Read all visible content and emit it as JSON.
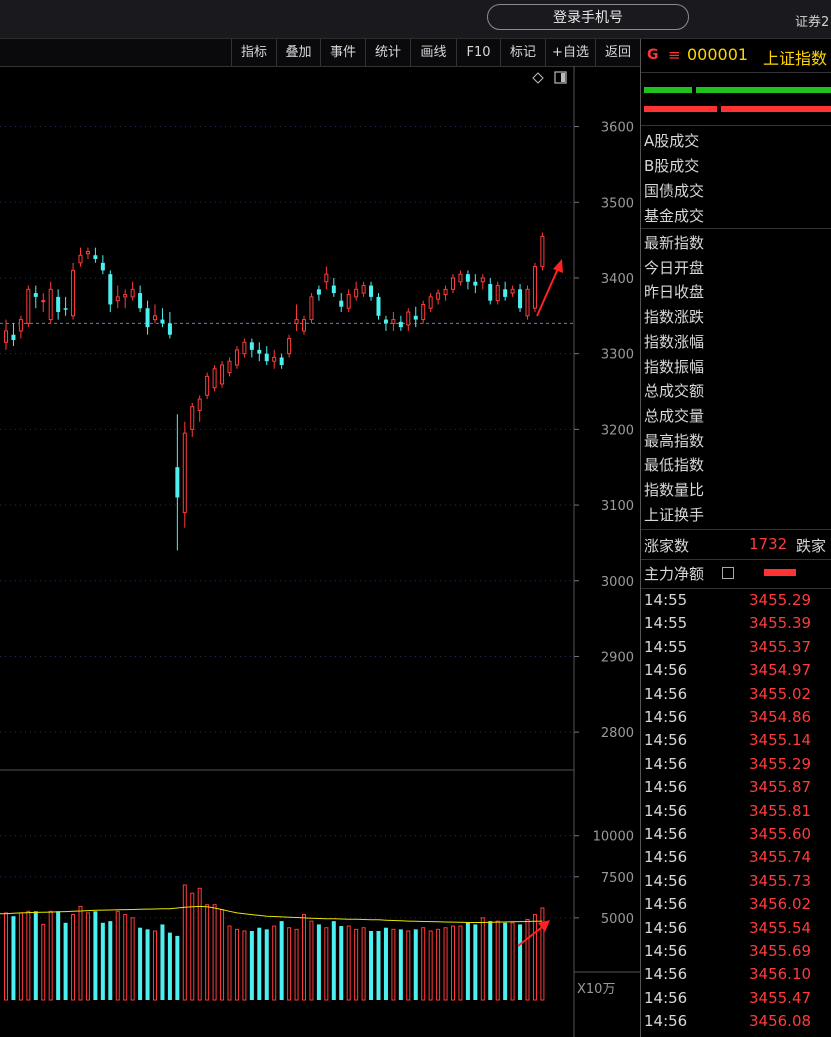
{
  "header": {
    "login_label": "登录手机号",
    "right_text": "证券2"
  },
  "toolbar": {
    "items": [
      "指标",
      "叠加",
      "事件",
      "统计",
      "画线",
      "F10",
      "标记",
      "+自选",
      "返回"
    ]
  },
  "panel": {
    "g_label": "G",
    "menu_glyph": "≡",
    "index_code": "000001",
    "index_name": "上证指数",
    "volume_labels": [
      "A股成交",
      "B股成交",
      "国债成交",
      "基金成交"
    ],
    "stat_labels": [
      "最新指数",
      "今日开盘",
      "昨日收盘",
      "指数涨跌",
      "指数涨幅",
      "指数振幅",
      "总成交额",
      "总成交量",
      "最高指数",
      "最低指数",
      "指数量比",
      "上证换手"
    ],
    "breadth_label": "涨家数",
    "breadth_value": "1732",
    "breadth_down_label": "跌家",
    "main_flow_label": "主力净额",
    "ticks": [
      {
        "time": "14:55",
        "price": "3455.29"
      },
      {
        "time": "14:55",
        "price": "3455.39"
      },
      {
        "time": "14:55",
        "price": "3455.37"
      },
      {
        "time": "14:56",
        "price": "3454.97"
      },
      {
        "time": "14:56",
        "price": "3455.02"
      },
      {
        "time": "14:56",
        "price": "3454.86"
      },
      {
        "time": "14:56",
        "price": "3455.14"
      },
      {
        "time": "14:56",
        "price": "3455.29"
      },
      {
        "time": "14:56",
        "price": "3455.87"
      },
      {
        "time": "14:56",
        "price": "3455.81"
      },
      {
        "time": "14:56",
        "price": "3455.60"
      },
      {
        "time": "14:56",
        "price": "3455.74"
      },
      {
        "time": "14:56",
        "price": "3455.73"
      },
      {
        "time": "14:56",
        "price": "3456.02"
      },
      {
        "time": "14:56",
        "price": "3455.54"
      },
      {
        "time": "14:56",
        "price": "3455.69"
      },
      {
        "time": "14:56",
        "price": "3456.10"
      },
      {
        "time": "14:56",
        "price": "3455.47"
      },
      {
        "time": "14:56",
        "price": "3456.08"
      }
    ]
  },
  "colors": {
    "up": "#ff3b3b",
    "down": "#4df0f0",
    "ma": "#e6e600",
    "grid": "#2a2a5a",
    "axis_text": "#9a9a9a",
    "ref_line": "#5a7fd6"
  },
  "chart_data": {
    "type": "candlestick",
    "price_ticks": [
      3600,
      3500,
      3400,
      3300,
      3200,
      3100,
      3000,
      2900,
      2800
    ],
    "price_range": [
      2750,
      3680
    ],
    "volume_ticks": [
      10000,
      7500,
      5000
    ],
    "volume_range": [
      0,
      14000
    ],
    "volume_unit": "X10万",
    "reference_price": 3340,
    "candles": [
      {
        "o": 3315,
        "h": 3345,
        "l": 3305,
        "c": 3330
      },
      {
        "o": 3325,
        "h": 3340,
        "l": 3310,
        "c": 3318
      },
      {
        "o": 3330,
        "h": 3350,
        "l": 3320,
        "c": 3345
      },
      {
        "o": 3340,
        "h": 3390,
        "l": 3335,
        "c": 3385
      },
      {
        "o": 3380,
        "h": 3390,
        "l": 3360,
        "c": 3375
      },
      {
        "o": 3370,
        "h": 3380,
        "l": 3355,
        "c": 3370
      },
      {
        "o": 3345,
        "h": 3395,
        "l": 3340,
        "c": 3385
      },
      {
        "o": 3375,
        "h": 3385,
        "l": 3345,
        "c": 3355
      },
      {
        "o": 3360,
        "h": 3375,
        "l": 3350,
        "c": 3358
      },
      {
        "o": 3350,
        "h": 3420,
        "l": 3345,
        "c": 3410
      },
      {
        "o": 3420,
        "h": 3440,
        "l": 3415,
        "c": 3430
      },
      {
        "o": 3432,
        "h": 3440,
        "l": 3425,
        "c": 3435
      },
      {
        "o": 3430,
        "h": 3440,
        "l": 3420,
        "c": 3425
      },
      {
        "o": 3420,
        "h": 3430,
        "l": 3405,
        "c": 3410
      },
      {
        "o": 3405,
        "h": 3410,
        "l": 3355,
        "c": 3365
      },
      {
        "o": 3370,
        "h": 3390,
        "l": 3360,
        "c": 3375
      },
      {
        "o": 3375,
        "h": 3385,
        "l": 3360,
        "c": 3378
      },
      {
        "o": 3375,
        "h": 3395,
        "l": 3370,
        "c": 3385
      },
      {
        "o": 3380,
        "h": 3390,
        "l": 3355,
        "c": 3360
      },
      {
        "o": 3360,
        "h": 3370,
        "l": 3325,
        "c": 3335
      },
      {
        "o": 3345,
        "h": 3365,
        "l": 3340,
        "c": 3350
      },
      {
        "o": 3345,
        "h": 3360,
        "l": 3335,
        "c": 3340
      },
      {
        "o": 3340,
        "h": 3355,
        "l": 3320,
        "c": 3325
      },
      {
        "o": 3150,
        "h": 3220,
        "l": 3040,
        "c": 3110
      },
      {
        "o": 3090,
        "h": 3210,
        "l": 3070,
        "c": 3195
      },
      {
        "o": 3200,
        "h": 3235,
        "l": 3190,
        "c": 3230
      },
      {
        "o": 3225,
        "h": 3245,
        "l": 3210,
        "c": 3240
      },
      {
        "o": 3245,
        "h": 3275,
        "l": 3240,
        "c": 3270
      },
      {
        "o": 3255,
        "h": 3285,
        "l": 3250,
        "c": 3280
      },
      {
        "o": 3260,
        "h": 3290,
        "l": 3255,
        "c": 3285
      },
      {
        "o": 3275,
        "h": 3295,
        "l": 3270,
        "c": 3290
      },
      {
        "o": 3285,
        "h": 3310,
        "l": 3280,
        "c": 3305
      },
      {
        "o": 3300,
        "h": 3320,
        "l": 3295,
        "c": 3315
      },
      {
        "o": 3315,
        "h": 3320,
        "l": 3295,
        "c": 3305
      },
      {
        "o": 3305,
        "h": 3315,
        "l": 3290,
        "c": 3300
      },
      {
        "o": 3300,
        "h": 3310,
        "l": 3285,
        "c": 3290
      },
      {
        "o": 3290,
        "h": 3305,
        "l": 3280,
        "c": 3295
      },
      {
        "o": 3295,
        "h": 3300,
        "l": 3280,
        "c": 3285
      },
      {
        "o": 3300,
        "h": 3325,
        "l": 3295,
        "c": 3320
      },
      {
        "o": 3340,
        "h": 3365,
        "l": 3330,
        "c": 3345
      },
      {
        "o": 3330,
        "h": 3350,
        "l": 3325,
        "c": 3345
      },
      {
        "o": 3345,
        "h": 3380,
        "l": 3340,
        "c": 3375
      },
      {
        "o": 3385,
        "h": 3390,
        "l": 3370,
        "c": 3378
      },
      {
        "o": 3395,
        "h": 3415,
        "l": 3385,
        "c": 3405
      },
      {
        "o": 3390,
        "h": 3400,
        "l": 3375,
        "c": 3380
      },
      {
        "o": 3370,
        "h": 3380,
        "l": 3355,
        "c": 3362
      },
      {
        "o": 3360,
        "h": 3385,
        "l": 3355,
        "c": 3378
      },
      {
        "o": 3375,
        "h": 3395,
        "l": 3370,
        "c": 3385
      },
      {
        "o": 3380,
        "h": 3395,
        "l": 3375,
        "c": 3390
      },
      {
        "o": 3390,
        "h": 3395,
        "l": 3370,
        "c": 3375
      },
      {
        "o": 3375,
        "h": 3380,
        "l": 3345,
        "c": 3350
      },
      {
        "o": 3345,
        "h": 3350,
        "l": 3330,
        "c": 3340
      },
      {
        "o": 3340,
        "h": 3355,
        "l": 3330,
        "c": 3345
      },
      {
        "o": 3342,
        "h": 3350,
        "l": 3330,
        "c": 3335
      },
      {
        "o": 3338,
        "h": 3360,
        "l": 3330,
        "c": 3355
      },
      {
        "o": 3350,
        "h": 3362,
        "l": 3335,
        "c": 3345
      },
      {
        "o": 3345,
        "h": 3370,
        "l": 3340,
        "c": 3365
      },
      {
        "o": 3360,
        "h": 3380,
        "l": 3355,
        "c": 3375
      },
      {
        "o": 3372,
        "h": 3385,
        "l": 3365,
        "c": 3380
      },
      {
        "o": 3378,
        "h": 3390,
        "l": 3370,
        "c": 3385
      },
      {
        "o": 3385,
        "h": 3405,
        "l": 3380,
        "c": 3400
      },
      {
        "o": 3395,
        "h": 3410,
        "l": 3390,
        "c": 3405
      },
      {
        "o": 3405,
        "h": 3410,
        "l": 3385,
        "c": 3395
      },
      {
        "o": 3395,
        "h": 3405,
        "l": 3380,
        "c": 3390
      },
      {
        "o": 3395,
        "h": 3405,
        "l": 3385,
        "c": 3400
      },
      {
        "o": 3392,
        "h": 3400,
        "l": 3365,
        "c": 3370
      },
      {
        "o": 3370,
        "h": 3395,
        "l": 3365,
        "c": 3390
      },
      {
        "o": 3385,
        "h": 3395,
        "l": 3370,
        "c": 3375
      },
      {
        "o": 3380,
        "h": 3390,
        "l": 3375,
        "c": 3385
      },
      {
        "o": 3385,
        "h": 3392,
        "l": 3355,
        "c": 3360
      },
      {
        "o": 3350,
        "h": 3390,
        "l": 3345,
        "c": 3385
      },
      {
        "o": 3360,
        "h": 3420,
        "l": 3355,
        "c": 3415
      },
      {
        "o": 3415,
        "h": 3460,
        "l": 3410,
        "c": 3455
      }
    ],
    "volumes": [
      5300,
      5100,
      5300,
      5400,
      5400,
      4600,
      5400,
      5400,
      4700,
      5200,
      5700,
      5300,
      5400,
      4700,
      4800,
      5400,
      5200,
      5000,
      4400,
      4300,
      4200,
      4600,
      4100,
      3900,
      7000,
      6500,
      6800,
      5800,
      5800,
      5500,
      4500,
      4300,
      4200,
      4200,
      4400,
      4300,
      4500,
      4800,
      4400,
      4300,
      5200,
      4800,
      4600,
      4400,
      4800,
      4500,
      4500,
      4300,
      4400,
      4200,
      4200,
      4400,
      4300,
      4300,
      4200,
      4300,
      4400,
      4200,
      4300,
      4400,
      4500,
      4500,
      4700,
      4600,
      5000,
      4800,
      4800,
      4700,
      4700,
      4600,
      4900,
      5200,
      5600
    ],
    "ma_volumes": [
      5250,
      5280,
      5300,
      5320,
      5330,
      5340,
      5350,
      5370,
      5380,
      5400,
      5420,
      5440,
      5460,
      5470,
      5480,
      5490,
      5500,
      5510,
      5520,
      5530,
      5540,
      5550,
      5560,
      5600,
      5640,
      5680,
      5700,
      5680,
      5600,
      5500,
      5400,
      5300,
      5250,
      5200,
      5150,
      5100,
      5080,
      5060,
      5040,
      5020,
      5000,
      4980,
      4960,
      4950,
      4940,
      4930,
      4920,
      4910,
      4900,
      4890,
      4880,
      4860,
      4840,
      4820,
      4800,
      4790,
      4780,
      4770,
      4760,
      4750,
      4740,
      4730,
      4720,
      4720,
      4720,
      4730,
      4740,
      4750,
      4760,
      4770,
      4780,
      4790,
      4800
    ]
  }
}
